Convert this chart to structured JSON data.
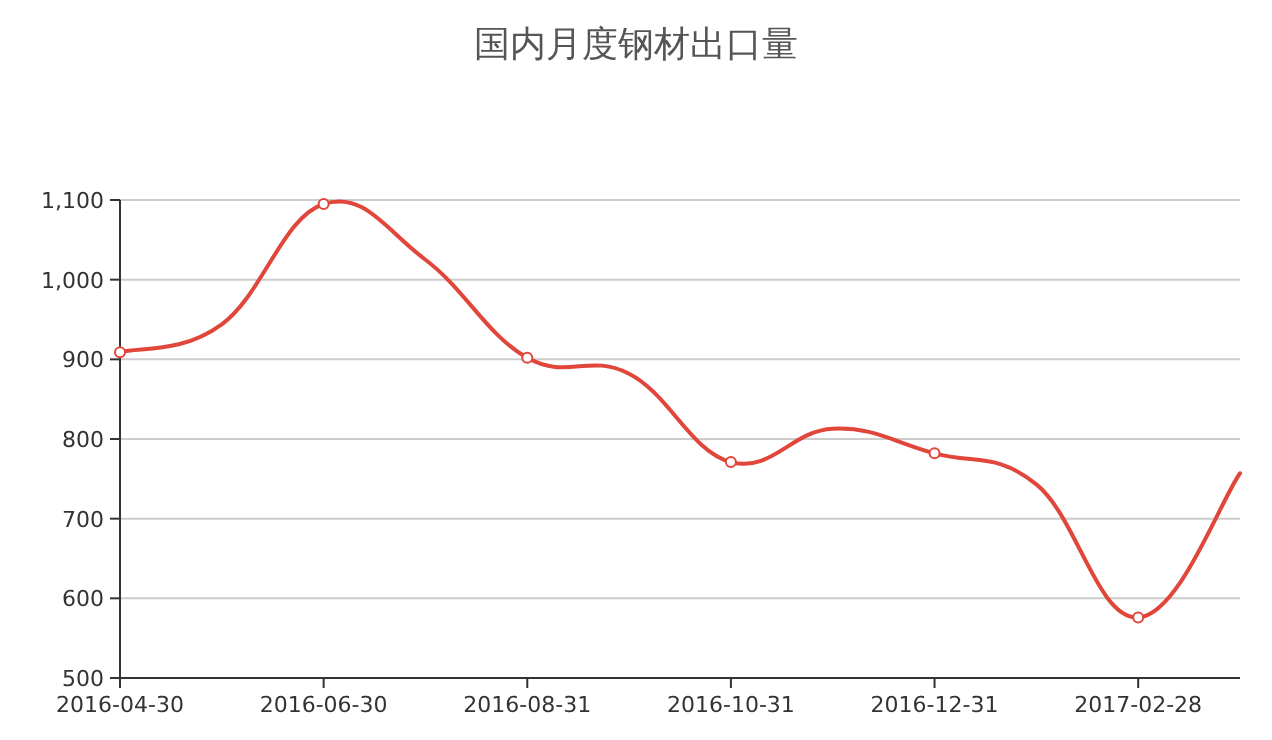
{
  "chart_data": {
    "type": "line",
    "title": "国内月度钢材出口量",
    "categories": [
      "2016-04-30",
      null,
      "2016-06-30",
      null,
      "2016-08-31",
      null,
      "2016-10-31",
      null,
      "2016-12-31",
      null,
      "2017-02-28",
      null
    ],
    "series": [
      {
        "color": "#e0463a",
        "values": [
          909,
          944,
          1095,
          1025,
          902,
          882,
          771,
          813,
          782,
          743,
          576,
          757
        ]
      }
    ],
    "ylim": [
      500,
      1100
    ],
    "yticks": [
      {
        "value": 500,
        "label": "500"
      },
      {
        "value": 600,
        "label": "600"
      },
      {
        "value": 700,
        "label": "700"
      },
      {
        "value": 800,
        "label": "800"
      },
      {
        "value": 900,
        "label": "900"
      },
      {
        "value": 1000,
        "label": "1,000"
      },
      {
        "value": 1100,
        "label": "1,100"
      }
    ],
    "grid": "y",
    "marker": "circle",
    "line_style": "solid"
  }
}
